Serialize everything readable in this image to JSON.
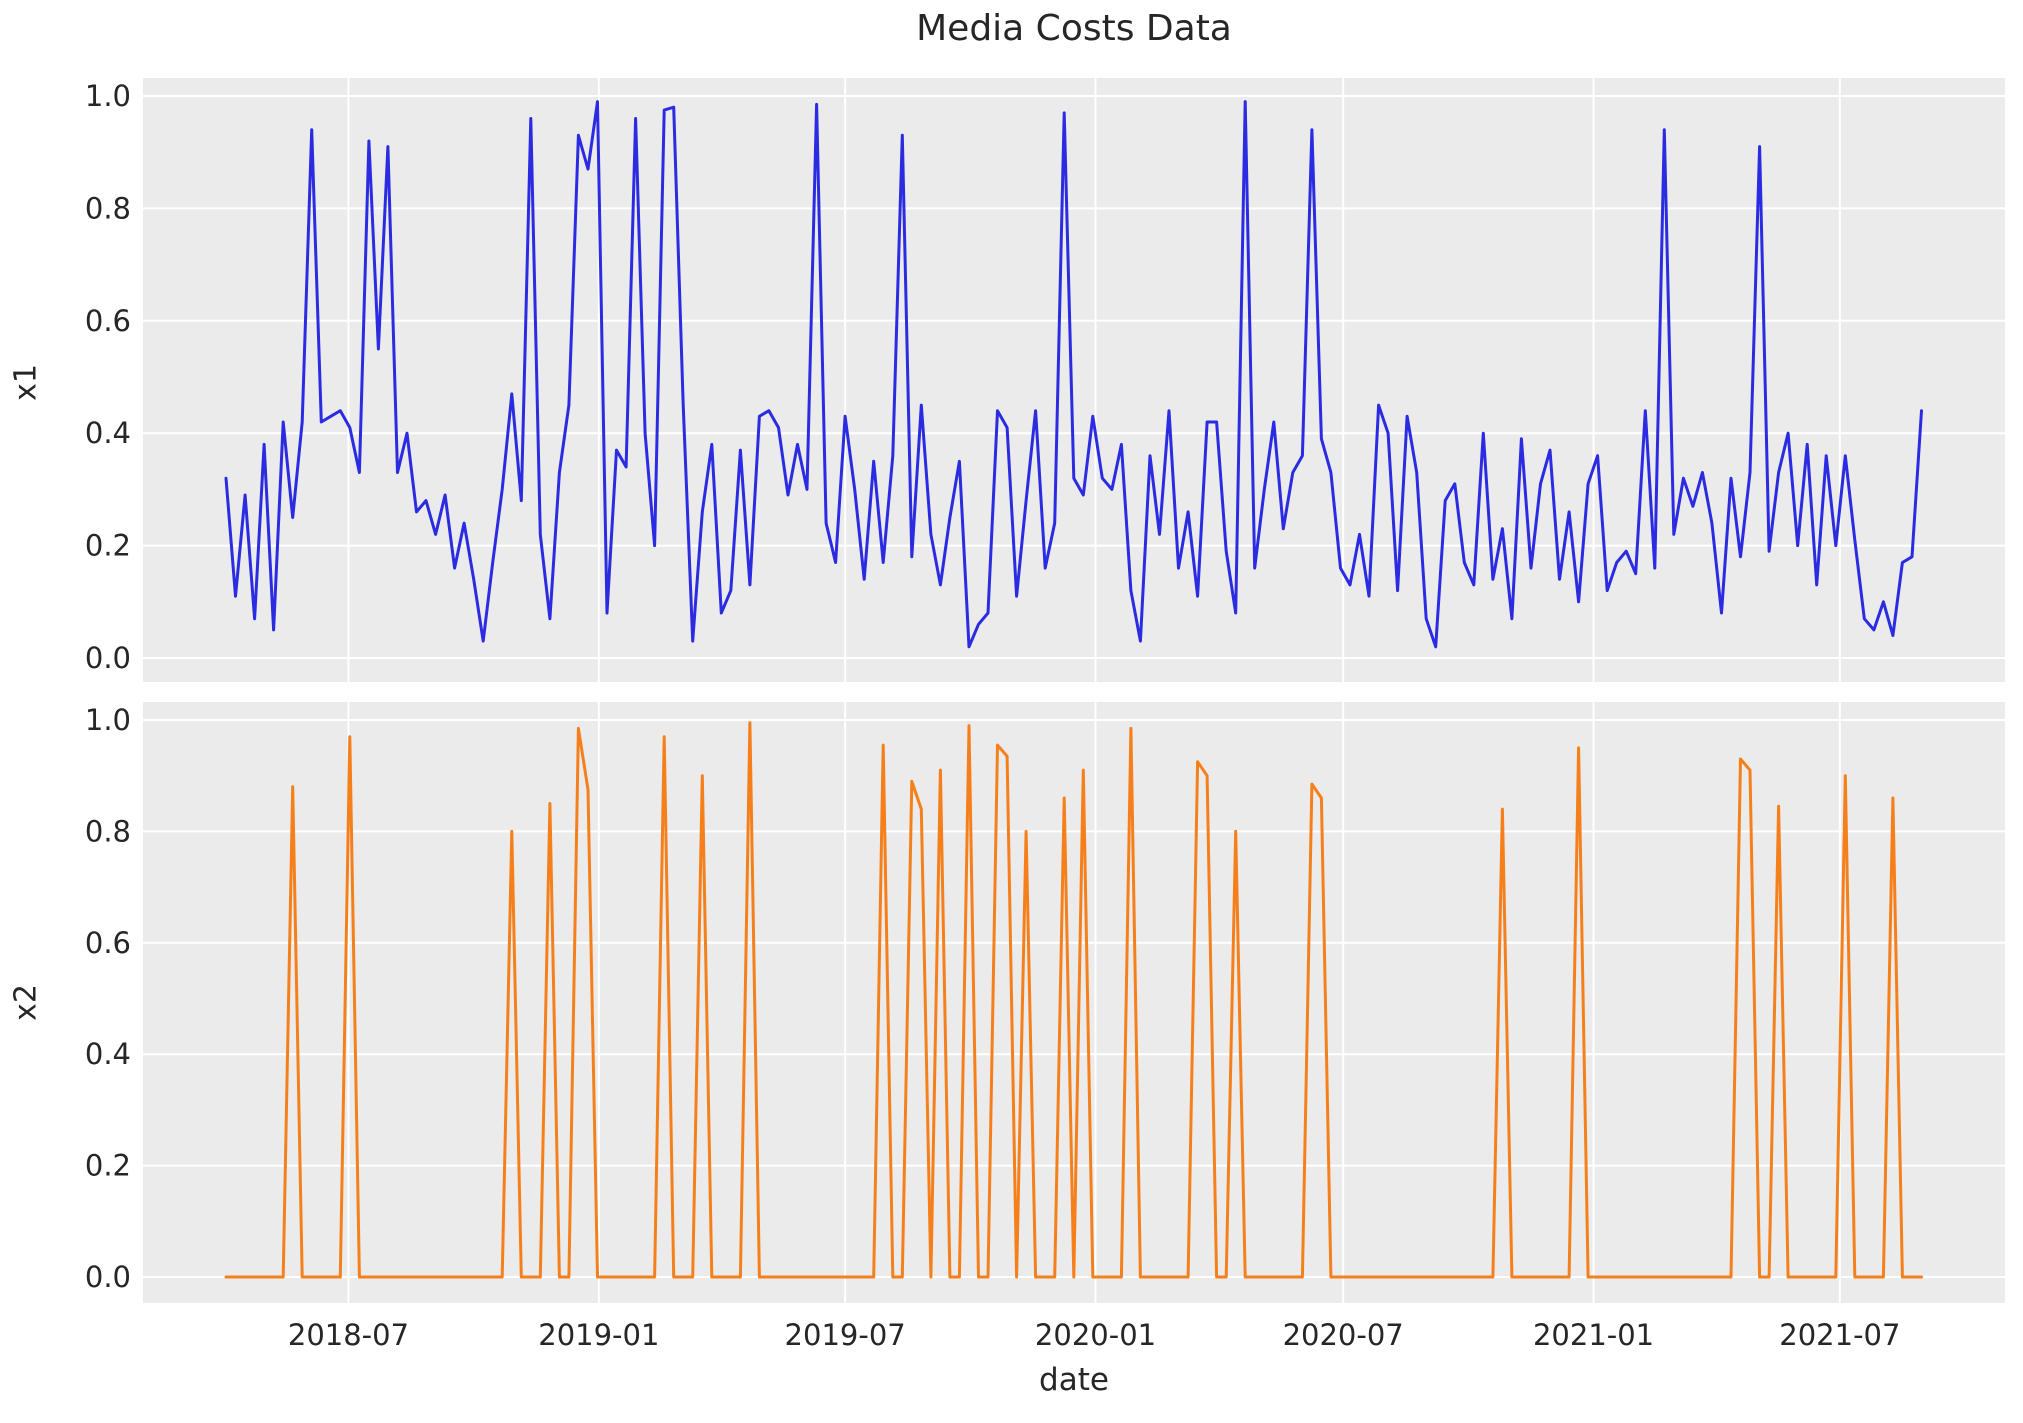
{
  "figure": {
    "background_color": "#ffffff",
    "plot_background_color": "#ebebeb",
    "grid_color": "#ffffff",
    "text_color": "#262626"
  },
  "chart_data": {
    "type": "line",
    "title": "Media Costs Data",
    "xlabel": "date",
    "x_start_date": "2018-04-02",
    "x_frequency": "weekly",
    "n_points": 179,
    "x_tick_labels": [
      "2018-07",
      "2019-01",
      "2019-07",
      "2020-01",
      "2020-07",
      "2021-01",
      "2021-07"
    ],
    "x_tick_dates": [
      "2018-07-01",
      "2019-01-01",
      "2019-07-01",
      "2020-01-01",
      "2020-07-01",
      "2021-01-01",
      "2021-07-01"
    ],
    "y_tick_labels": [
      "0.0",
      "0.2",
      "0.4",
      "0.6",
      "0.8",
      "1.0"
    ],
    "y_tick_values": [
      0.0,
      0.2,
      0.4,
      0.6,
      0.8,
      1.0
    ],
    "ylim": [
      0.0,
      1.0
    ],
    "grid": true,
    "legend_position": "none",
    "series": [
      {
        "name": "x1",
        "ylabel": "x1",
        "color": "#2b2be2",
        "values": [
          0.32,
          0.11,
          0.29,
          0.07,
          0.38,
          0.05,
          0.42,
          0.25,
          0.42,
          0.94,
          0.42,
          0.43,
          0.44,
          0.41,
          0.33,
          0.92,
          0.55,
          0.91,
          0.33,
          0.4,
          0.26,
          0.28,
          0.22,
          0.29,
          0.16,
          0.24,
          0.14,
          0.03,
          0.17,
          0.3,
          0.47,
          0.28,
          0.96,
          0.22,
          0.07,
          0.33,
          0.45,
          0.93,
          0.87,
          0.99,
          0.08,
          0.37,
          0.34,
          0.96,
          0.4,
          0.2,
          0.975,
          0.98,
          0.45,
          0.03,
          0.26,
          0.38,
          0.08,
          0.12,
          0.37,
          0.13,
          0.43,
          0.44,
          0.41,
          0.29,
          0.38,
          0.3,
          0.985,
          0.24,
          0.17,
          0.43,
          0.3,
          0.14,
          0.35,
          0.17,
          0.36,
          0.93,
          0.18,
          0.45,
          0.22,
          0.13,
          0.25,
          0.35,
          0.02,
          0.06,
          0.08,
          0.44,
          0.41,
          0.11,
          0.28,
          0.44,
          0.16,
          0.24,
          0.97,
          0.32,
          0.29,
          0.43,
          0.32,
          0.3,
          0.38,
          0.12,
          0.03,
          0.36,
          0.22,
          0.44,
          0.16,
          0.26,
          0.11,
          0.42,
          0.42,
          0.19,
          0.08,
          0.99,
          0.16,
          0.3,
          0.42,
          0.23,
          0.33,
          0.36,
          0.94,
          0.39,
          0.33,
          0.16,
          0.13,
          0.22,
          0.11,
          0.45,
          0.4,
          0.12,
          0.43,
          0.33,
          0.07,
          0.02,
          0.28,
          0.31,
          0.17,
          0.13,
          0.4,
          0.14,
          0.23,
          0.07,
          0.39,
          0.16,
          0.31,
          0.37,
          0.14,
          0.26,
          0.1,
          0.31,
          0.36,
          0.12,
          0.17,
          0.19,
          0.15,
          0.44,
          0.16,
          0.94,
          0.22,
          0.32,
          0.27,
          0.33,
          0.24,
          0.08,
          0.32,
          0.18,
          0.33,
          0.91,
          0.19,
          0.33,
          0.4,
          0.2,
          0.38,
          0.13,
          0.36,
          0.2,
          0.36,
          0.21,
          0.07,
          0.05,
          0.1,
          0.04,
          0.17,
          0.18,
          0.44
        ]
      },
      {
        "name": "x2",
        "ylabel": "x2",
        "color": "#f5801b",
        "values": [
          0,
          0,
          0,
          0,
          0,
          0,
          0,
          0.88,
          0,
          0,
          0,
          0,
          0,
          0.97,
          0,
          0,
          0,
          0,
          0,
          0,
          0,
          0,
          0,
          0,
          0,
          0,
          0,
          0,
          0,
          0,
          0.8,
          0,
          0,
          0,
          0.85,
          0,
          0,
          0.985,
          0.875,
          0,
          0,
          0,
          0,
          0,
          0,
          0,
          0.97,
          0,
          0,
          0,
          0.9,
          0,
          0,
          0,
          0,
          0.995,
          0,
          0,
          0,
          0,
          0,
          0,
          0,
          0,
          0,
          0,
          0,
          0,
          0,
          0.955,
          0,
          0,
          0.89,
          0.84,
          0,
          0.91,
          0,
          0,
          0.99,
          0,
          0,
          0.955,
          0.935,
          0,
          0.8,
          0,
          0,
          0,
          0.86,
          0,
          0.91,
          0,
          0,
          0,
          0,
          0.985,
          0,
          0,
          0,
          0,
          0,
          0,
          0.925,
          0.9,
          0,
          0,
          0.8,
          0,
          0,
          0,
          0,
          0,
          0,
          0,
          0.885,
          0.86,
          0,
          0,
          0,
          0,
          0,
          0,
          0,
          0,
          0,
          0,
          0,
          0,
          0,
          0,
          0,
          0,
          0,
          0,
          0.84,
          0,
          0,
          0,
          0,
          0,
          0,
          0,
          0.95,
          0,
          0,
          0,
          0,
          0,
          0,
          0,
          0,
          0,
          0,
          0,
          0,
          0,
          0,
          0,
          0,
          0.93,
          0.91,
          0,
          0,
          0.845,
          0,
          0,
          0,
          0,
          0,
          0,
          0.9,
          0,
          0,
          0,
          0,
          0.86,
          0,
          0,
          0
        ]
      }
    ]
  }
}
